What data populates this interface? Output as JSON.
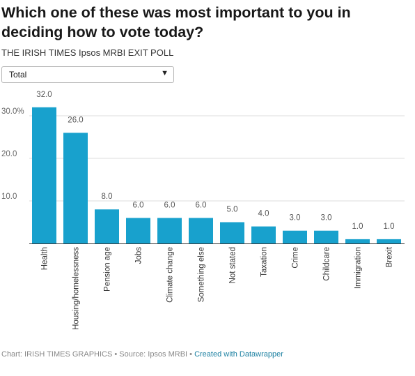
{
  "header": {
    "title": "Which one of these was most important to you in deciding how to vote today?",
    "subtitle": "THE IRISH TIMES Ipsos MRBI EXIT POLL"
  },
  "filter": {
    "selected": "Total",
    "caret": "▼"
  },
  "footer": {
    "source": "Chart: IRISH TIMES GRAPHICS • Source: Ipsos MRBI •",
    "link": "Created with Datawrapper"
  },
  "colors": {
    "bar": "#18a1cd",
    "grid": "#dddddd",
    "axis": "#333333",
    "label": "#555555"
  },
  "chart_data": {
    "type": "bar",
    "categories": [
      "Health",
      "Housing/homelessness",
      "Pension age",
      "Jobs",
      "Climate change",
      "Something else",
      "Not stated",
      "Taxation",
      "Crime",
      "Childcare",
      "Immigration",
      "Brexit"
    ],
    "values": [
      32.0,
      26.0,
      8.0,
      6.0,
      6.0,
      6.0,
      5.0,
      4.0,
      3.0,
      3.0,
      1.0,
      1.0
    ],
    "value_labels": [
      "32.0",
      "26.0",
      "8.0",
      "6.0",
      "6.0",
      "6.0",
      "5.0",
      "4.0",
      "3.0",
      "3.0",
      "1.0",
      "1.0"
    ],
    "yticks": [
      10,
      20,
      30
    ],
    "ytick_labels": [
      "10.0",
      "20.0",
      "30.0%"
    ],
    "ylim": [
      0,
      35
    ],
    "grid": true,
    "xlabel": "",
    "ylabel": ""
  }
}
